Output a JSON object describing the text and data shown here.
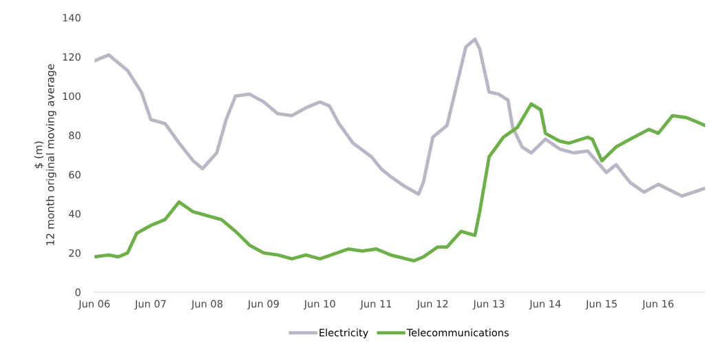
{
  "chart_data": {
    "type": "line",
    "ylabel": "$ (m)\n12 month original moving average",
    "ylim": [
      0,
      140
    ],
    "yticks": [
      0,
      20,
      40,
      60,
      80,
      100,
      120,
      140
    ],
    "xlim": [
      "2006-06",
      "2017-04"
    ],
    "xticks": [
      {
        "value": "2006-06",
        "label": "Jun 06"
      },
      {
        "value": "2007-06",
        "label": "Jun 07"
      },
      {
        "value": "2008-06",
        "label": "Jun 08"
      },
      {
        "value": "2009-06",
        "label": "Jun 09"
      },
      {
        "value": "2010-06",
        "label": "Jun 10"
      },
      {
        "value": "2011-06",
        "label": "Jun 11"
      },
      {
        "value": "2012-06",
        "label": "Jun 12"
      },
      {
        "value": "2013-06",
        "label": "Jun 13"
      },
      {
        "value": "2014-06",
        "label": "Jun 14"
      },
      {
        "value": "2015-06",
        "label": "Jun 15"
      },
      {
        "value": "2016-06",
        "label": "Jun 16"
      }
    ],
    "grid": false,
    "legend": "bottom",
    "marker": "none",
    "line_style": "solid",
    "series": [
      {
        "name": "Electricity",
        "color": "#b9b7c6",
        "x": [
          "2006-06",
          "2006-09",
          "2007-01",
          "2007-04",
          "2007-06",
          "2007-09",
          "2007-12",
          "2008-03",
          "2008-05",
          "2008-08",
          "2008-10",
          "2008-12",
          "2009-03",
          "2009-06",
          "2009-09",
          "2009-12",
          "2010-03",
          "2010-06",
          "2010-08",
          "2010-10",
          "2011-01",
          "2011-05",
          "2011-07",
          "2011-09",
          "2011-12",
          "2012-03",
          "2012-04",
          "2012-06",
          "2012-09",
          "2012-11",
          "2013-01",
          "2013-03",
          "2013-04",
          "2013-06",
          "2013-08",
          "2013-10",
          "2013-11",
          "2014-01",
          "2014-03",
          "2014-06",
          "2014-09",
          "2014-12",
          "2015-03",
          "2015-07",
          "2015-09",
          "2015-12",
          "2016-03",
          "2016-06",
          "2016-11",
          "2017-04"
        ],
        "values": [
          118,
          121,
          113,
          102,
          88,
          86,
          76,
          67,
          63,
          71,
          88,
          100,
          101,
          97,
          91,
          90,
          94,
          97,
          95,
          86,
          76,
          69,
          63,
          59,
          54,
          50,
          56,
          79,
          85,
          105,
          125,
          129,
          124,
          102,
          101,
          98,
          84,
          74,
          71,
          78,
          73,
          71,
          72,
          61,
          65,
          56,
          51,
          55,
          49,
          53
        ]
      },
      {
        "name": "Telecommunications",
        "color": "#6db04a",
        "x": [
          "2006-06",
          "2006-09",
          "2006-11",
          "2007-01",
          "2007-03",
          "2007-06",
          "2007-09",
          "2007-12",
          "2008-03",
          "2008-06",
          "2008-09",
          "2008-12",
          "2009-03",
          "2009-06",
          "2009-09",
          "2009-12",
          "2010-03",
          "2010-06",
          "2010-12",
          "2011-03",
          "2011-06",
          "2011-09",
          "2012-02",
          "2012-04",
          "2012-07",
          "2012-09",
          "2012-12",
          "2013-03",
          "2013-04",
          "2013-06",
          "2013-09",
          "2013-12",
          "2014-03",
          "2014-05",
          "2014-06",
          "2014-09",
          "2014-11",
          "2015-03",
          "2015-04",
          "2015-06",
          "2015-09",
          "2015-12",
          "2016-04",
          "2016-06",
          "2016-09",
          "2016-12",
          "2017-04"
        ],
        "values": [
          18,
          19,
          18,
          20,
          30,
          34,
          37,
          46,
          41,
          39,
          37,
          31,
          24,
          20,
          19,
          17,
          19,
          17,
          22,
          21,
          22,
          19,
          16,
          18,
          23,
          23,
          31,
          29,
          41,
          69,
          79,
          84,
          96,
          93,
          81,
          77,
          76,
          79,
          78,
          67,
          74,
          78,
          83,
          81,
          90,
          89,
          85
        ]
      }
    ]
  }
}
